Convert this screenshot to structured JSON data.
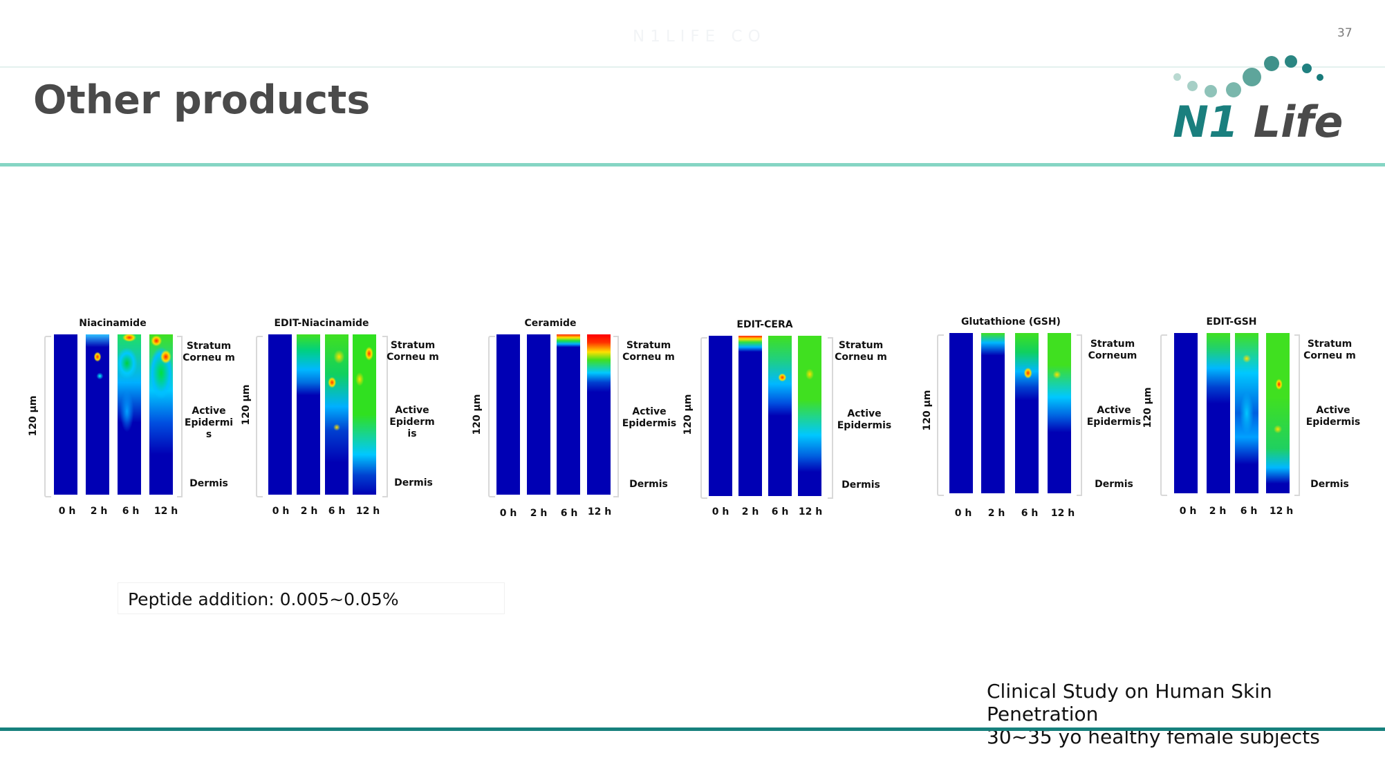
{
  "header": {
    "watermark": "N1LIFE CO",
    "page_number": "37",
    "title": "Other products"
  },
  "logo": {
    "n1": "N1",
    "life": "Life"
  },
  "colors": {
    "accent_line": "#85d5c4",
    "footer_line": "#17807d",
    "brand_teal": "#1a7f7e",
    "title_gray": "#4a4a4a",
    "heatmap_base": "#0000b4"
  },
  "panels": [
    {
      "title": "Niacinamide",
      "ylabel": "120 µm",
      "layers": {
        "stratum": "Stratum Corneu m",
        "active": "Active Epidermi s",
        "dermis": "Dermis"
      },
      "times": [
        "0 h",
        "2 h",
        "6 h",
        "12 h"
      ]
    },
    {
      "title": "EDIT-Niacinamide",
      "ylabel": "120 µm",
      "layers": {
        "stratum": "Stratum Corneu m",
        "active": "Active Epiderm is",
        "dermis": "Dermis"
      },
      "times": [
        "0 h",
        "2 h",
        "6 h",
        "12 h"
      ]
    },
    {
      "title": "Ceramide",
      "ylabel": "120 µm",
      "layers": {
        "stratum": "Stratum Corneu m",
        "active": "Active Epidermis",
        "dermis": "Dermis"
      },
      "times": [
        "0 h",
        "2 h",
        "6 h",
        "12 h"
      ]
    },
    {
      "title": "EDIT-CERA",
      "ylabel": "120 µm",
      "layers": {
        "stratum": "Stratum Corneu m",
        "active": "Active Epidermis",
        "dermis": "Dermis"
      },
      "times": [
        "0 h",
        "2 h",
        "6 h",
        "12 h"
      ]
    },
    {
      "title": "Glutathione (GSH)",
      "ylabel": "120 µm",
      "layers": {
        "stratum": "Stratum Corneum",
        "active": "Active Epidermis",
        "dermis": "Dermis"
      },
      "times": [
        "0 h",
        "2 h",
        "6 h",
        "12 h"
      ]
    },
    {
      "title": "EDIT-GSH",
      "ylabel": "120 µm",
      "layers": {
        "stratum": "Stratum Corneu m",
        "active": "Active Epidermis",
        "dermis": "Dermis"
      },
      "times": [
        "0 h",
        "2 h",
        "6 h",
        "12 h"
      ]
    }
  ],
  "note": "Peptide addition: 0.005~0.05%",
  "study": {
    "line1": "Clinical Study on Human Skin",
    "line2": "Penetration",
    "line3": "30~35 yo healthy female subjects"
  }
}
